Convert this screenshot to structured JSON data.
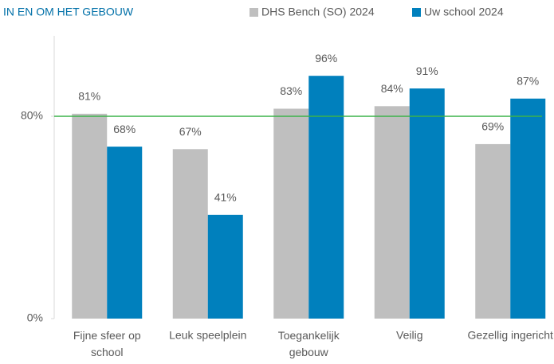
{
  "chart_data": {
    "type": "bar",
    "title": "IN EN OM HET GEBOUW",
    "categories": [
      "Fijne sfeer op school",
      "Leuk speelplein",
      "Toegankelijk gebouw",
      "Veilig",
      "Gezellig ingericht"
    ],
    "series": [
      {
        "name": "DHS Bench (SO) 2024",
        "color": "#bfbfbf",
        "values": [
          81,
          67,
          83,
          84,
          69
        ],
        "value_labels": [
          "81%",
          "67%",
          "83%",
          "84%",
          "69%"
        ]
      },
      {
        "name": "Uw school 2024",
        "color": "#0080bd",
        "values": [
          68,
          41,
          96,
          91,
          87
        ],
        "value_labels": [
          "68%",
          "41%",
          "96%",
          "91%",
          "87%"
        ]
      }
    ],
    "ylim": [
      0,
      110
    ],
    "yticks": [
      {
        "value": 0,
        "label": "0%"
      },
      {
        "value": 80,
        "label": "80%"
      }
    ],
    "reference_line": {
      "value": 80,
      "color": "#3cb34a"
    },
    "legend": "top"
  }
}
